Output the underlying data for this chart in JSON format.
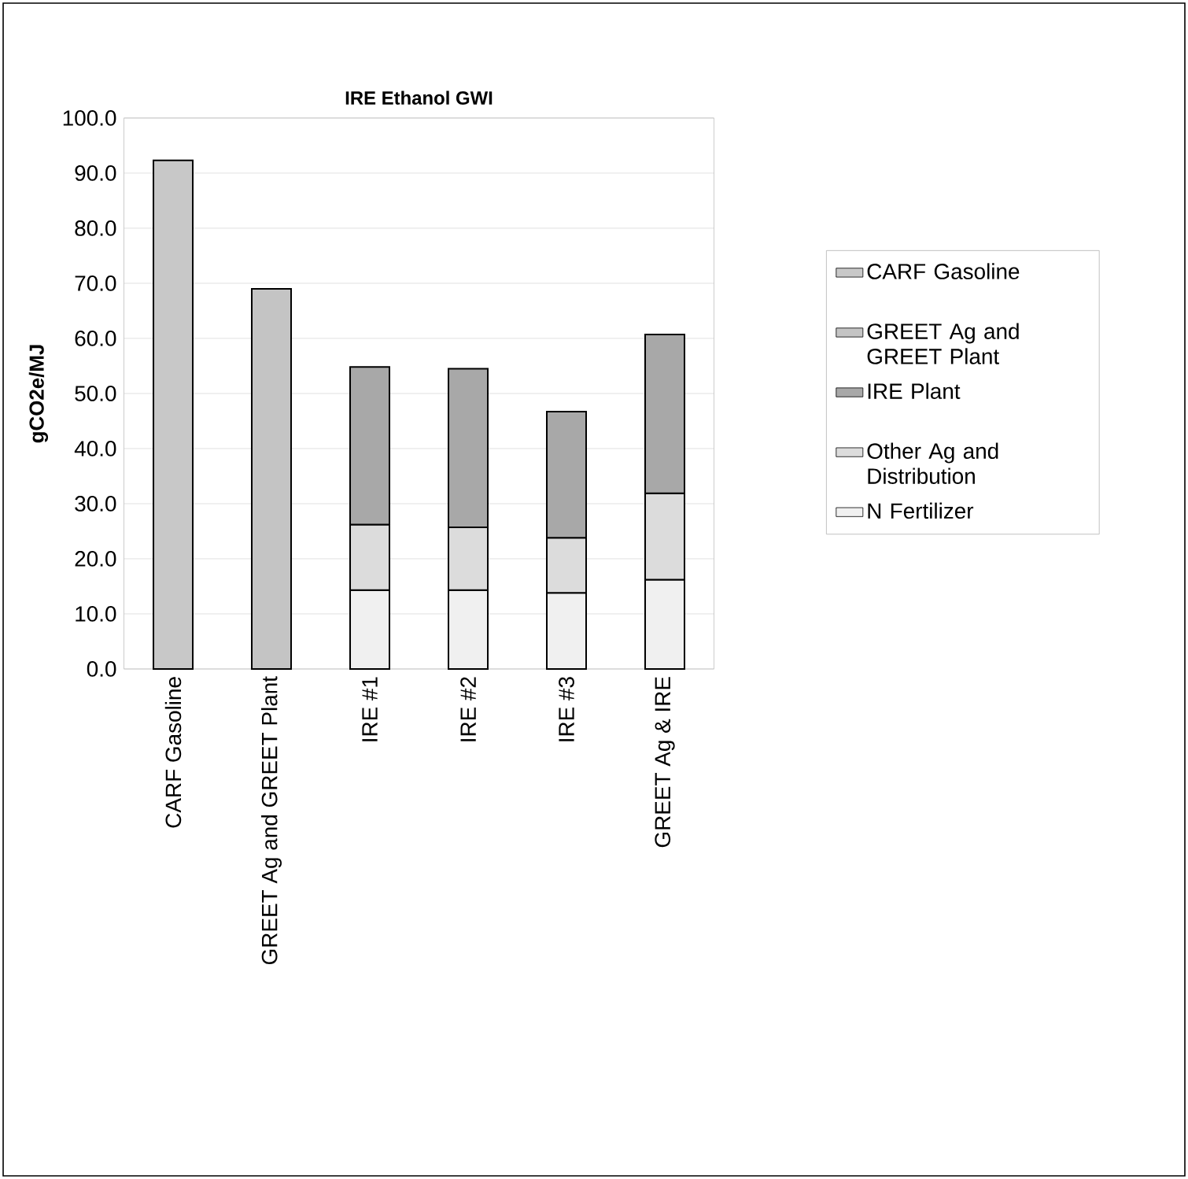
{
  "chart_data": {
    "type": "bar",
    "stacked": true,
    "title": "IRE Ethanol GWI",
    "ylabel": "gCO2e/MJ",
    "categories": [
      "CARF Gasoline",
      "GREET Ag and GREET Plant",
      "IRE #1",
      "IRE #2",
      "IRE #3",
      "GREET Ag & IRE"
    ],
    "series": [
      {
        "name": "N Fertilizer",
        "color": "#f0f0f0",
        "values": [
          null,
          null,
          14.3,
          14.3,
          13.8,
          16.2
        ]
      },
      {
        "name": "Other Ag and Distribution",
        "color": "#dcdcdc",
        "values": [
          null,
          null,
          11.9,
          11.4,
          10.0,
          15.7
        ]
      },
      {
        "name": "IRE Plant",
        "color": "#a8a8a8",
        "values": [
          null,
          null,
          28.6,
          28.8,
          22.9,
          28.8
        ]
      },
      {
        "name": "GREET Ag and GREET Plant",
        "color": "#c4c4c4",
        "values": [
          null,
          69.0,
          null,
          null,
          null,
          null
        ]
      },
      {
        "name": "CARF Gasoline",
        "color": "#c8c8c8",
        "values": [
          92.3,
          null,
          null,
          null,
          null,
          null
        ]
      }
    ],
    "ylim": [
      0,
      100
    ],
    "yticks": [
      {
        "value": 0,
        "label": "0.0"
      },
      {
        "value": 10,
        "label": "10.0"
      },
      {
        "value": 20,
        "label": "20.0"
      },
      {
        "value": 30,
        "label": "30.0"
      },
      {
        "value": 40,
        "label": "40.0"
      },
      {
        "value": 50,
        "label": "50.0"
      },
      {
        "value": 60,
        "label": "60.0"
      },
      {
        "value": 70,
        "label": "70.0"
      },
      {
        "value": 80,
        "label": "80.0"
      },
      {
        "value": 90,
        "label": "90.0"
      },
      {
        "value": 100,
        "label": "100.0"
      }
    ],
    "grid": "y",
    "legend": "right"
  }
}
